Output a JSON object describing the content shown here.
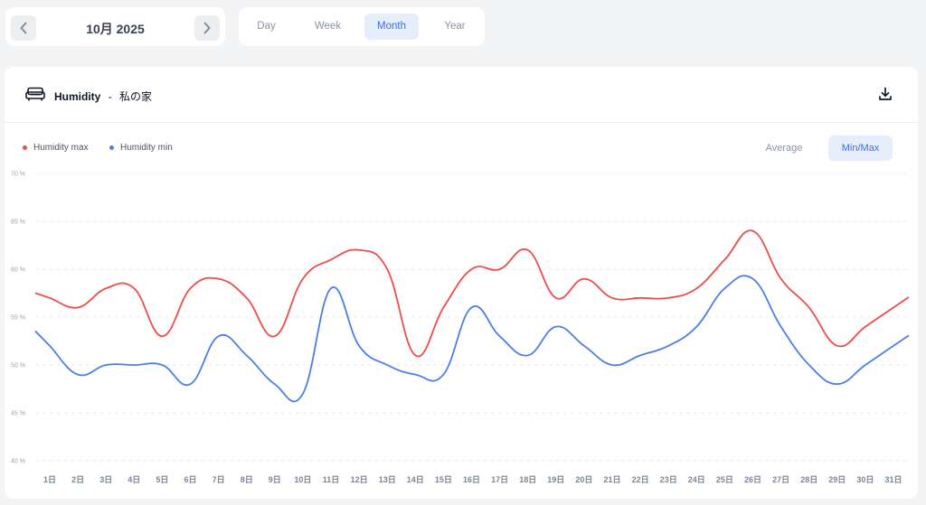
{
  "nav": {
    "month_label": "10月 2025",
    "prev_icon": "chevron-left-icon",
    "next_icon": "chevron-right-icon"
  },
  "range_tabs": [
    {
      "label": "Day",
      "active": false
    },
    {
      "label": "Week",
      "active": false
    },
    {
      "label": "Month",
      "active": true
    },
    {
      "label": "Year",
      "active": false
    }
  ],
  "header": {
    "icon": "sofa-icon",
    "metric": "Humidity",
    "separator": "-",
    "location": "私の家",
    "download_icon": "download-icon"
  },
  "modes": {
    "average": "Average",
    "minmax": "Min/Max",
    "active": "minmax"
  },
  "colors": {
    "max": "#ef4b4b",
    "min": "#4a7fe8",
    "accent": "#3d6fe0"
  },
  "chart_data": {
    "type": "line",
    "x": [
      "1日",
      "2日",
      "3日",
      "4日",
      "5日",
      "6日",
      "7日",
      "8日",
      "9日",
      "10日",
      "11日",
      "12日",
      "13日",
      "14日",
      "15日",
      "16日",
      "17日",
      "18日",
      "19日",
      "20日",
      "21日",
      "22日",
      "23日",
      "24日",
      "25日",
      "26日",
      "27日",
      "28日",
      "29日",
      "30日",
      "31日"
    ],
    "series": [
      {
        "name": "Humidity max",
        "color": "#ef4b4b",
        "values": [
          57,
          56,
          58,
          58,
          53,
          58,
          59,
          57,
          53,
          59,
          61,
          62,
          60,
          51,
          56,
          60,
          60,
          62,
          57,
          59,
          57,
          57,
          57,
          58,
          61,
          64,
          59,
          56,
          52,
          54,
          56
        ]
      },
      {
        "name": "Humidity min",
        "color": "#4a7fe8",
        "values": [
          52,
          49,
          50,
          50,
          50,
          48,
          53,
          51,
          48,
          47,
          58,
          52,
          50,
          49,
          49,
          56,
          53,
          51,
          54,
          52,
          50,
          51,
          52,
          54,
          58,
          59,
          54,
          50,
          48,
          50,
          52
        ]
      }
    ],
    "yticks": [
      "70 %",
      "65 %",
      "60 %",
      "55 %",
      "50 %",
      "45 %",
      "40 %"
    ],
    "ylim": [
      40,
      70
    ],
    "grid": true,
    "legend_position": "top-left"
  }
}
